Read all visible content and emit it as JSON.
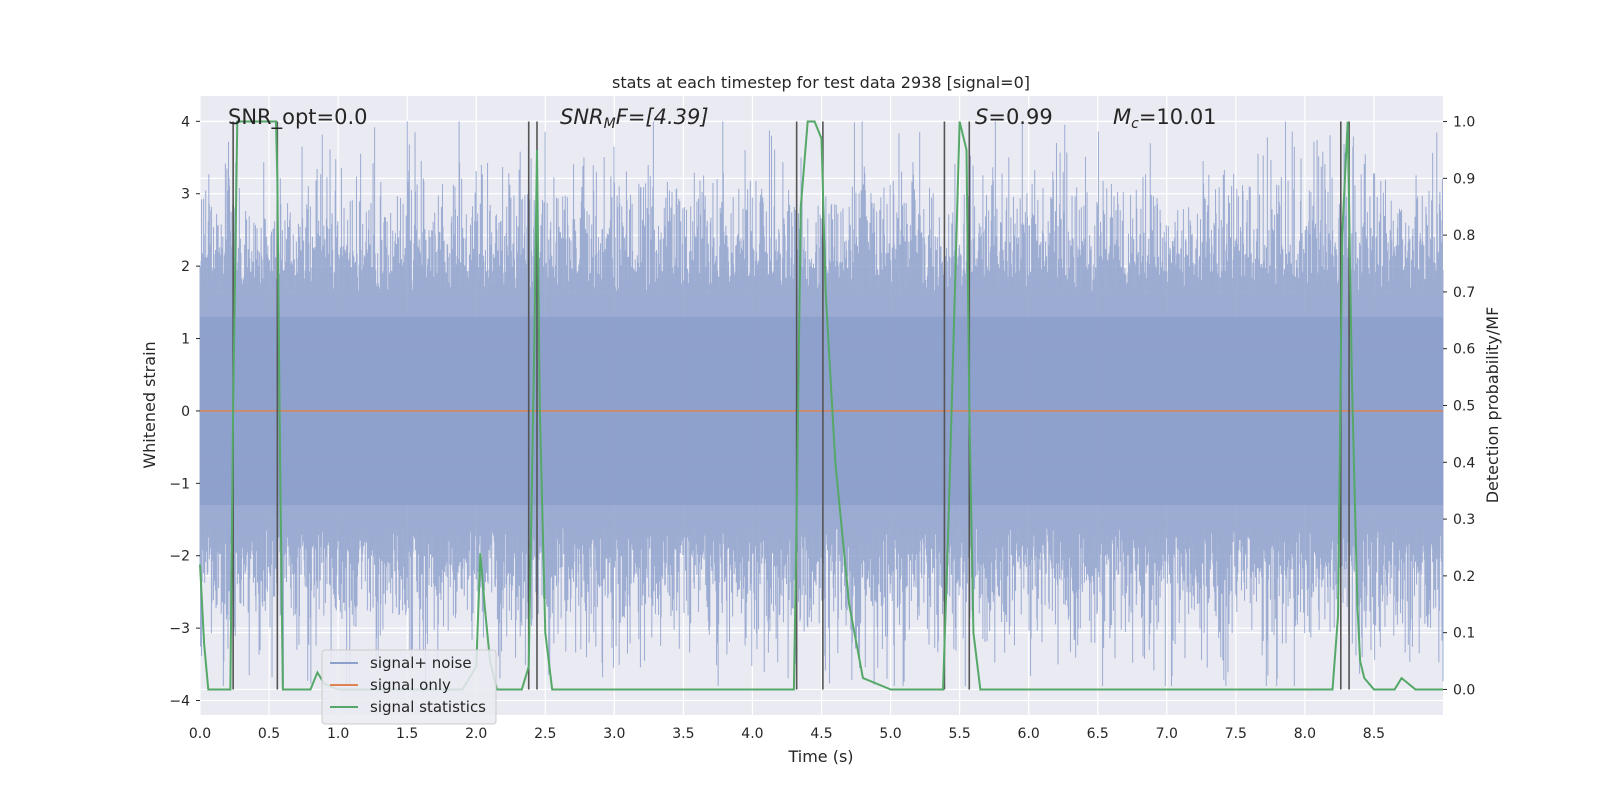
{
  "chart_data": {
    "type": "line",
    "title": "stats at each timestep for test data 2938 [signal=0]",
    "xlabel": "Time (s)",
    "ylabel": "Whitened strain",
    "ylabel_right": "Detection probability/MF",
    "xlim": [
      0.0,
      9.0
    ],
    "ylim": [
      -4.2,
      4.35
    ],
    "ylim_right": [
      -0.045,
      1.045
    ],
    "xticks": [
      "0.0",
      "0.5",
      "1.0",
      "1.5",
      "2.0",
      "2.5",
      "3.0",
      "3.5",
      "4.0",
      "4.5",
      "5.0",
      "5.5",
      "6.0",
      "6.5",
      "7.0",
      "7.5",
      "8.0",
      "8.5"
    ],
    "yticks": [
      "4",
      "3",
      "2",
      "1",
      "0",
      "−1",
      "−2",
      "−3",
      "−4"
    ],
    "yticks_right": [
      "1.0",
      "0.9",
      "0.8",
      "0.7",
      "0.6",
      "0.5",
      "0.4",
      "0.3",
      "0.2",
      "0.1",
      "0.0"
    ],
    "grid": true,
    "legend_position": "lower-left",
    "annotations": {
      "snr_opt": "SNR_opt=0.0",
      "snr_mf_prefix": "SNR",
      "snr_mf_sub": "M",
      "snr_mf_rest": "F=[4.39]",
      "s_var": "S",
      "s_rest": "=0.99",
      "mc_var": "M",
      "mc_sub": "c",
      "mc_rest": "=10.01"
    },
    "series": [
      {
        "name": "signal+ noise",
        "color": "#8da0cb",
        "style": "dense whitened noise, approx ±2 sigma with peaks to ±4",
        "peaks": [
          {
            "x": 1.5,
            "y": 4.0
          },
          {
            "x": 0.7,
            "y": -3.3
          },
          {
            "x": 2.8,
            "y": -3.4
          },
          {
            "x": 4.35,
            "y": 3.5
          },
          {
            "x": 7.8,
            "y": -3.7
          },
          {
            "x": 6.2,
            "y": 3.7
          }
        ]
      },
      {
        "name": "signal only",
        "color": "#dd8452",
        "x": [
          0.0,
          9.0
        ],
        "y": [
          0.0,
          0.0
        ]
      },
      {
        "name": "signal statistics",
        "color": "#55a868",
        "axis": "right",
        "x": [
          0.0,
          0.03,
          0.06,
          0.15,
          0.22,
          0.24,
          0.27,
          0.29,
          0.31,
          0.35,
          0.55,
          0.56,
          0.58,
          0.6,
          0.62,
          0.7,
          0.75,
          0.8,
          0.85,
          0.9,
          1.0,
          1.3,
          1.6,
          1.9,
          2.0,
          2.03,
          2.06,
          2.1,
          2.15,
          2.2,
          2.33,
          2.38,
          2.42,
          2.44,
          2.46,
          2.5,
          2.55,
          2.6,
          3.0,
          3.5,
          4.0,
          4.3,
          4.32,
          4.35,
          4.4,
          4.45,
          4.5,
          4.53,
          4.6,
          4.7,
          4.8,
          5.0,
          5.3,
          5.38,
          5.42,
          5.5,
          5.55,
          5.57,
          5.6,
          5.65,
          5.7,
          6.0,
          7.0,
          8.0,
          8.2,
          8.24,
          8.27,
          8.31,
          8.34,
          8.38,
          8.4,
          8.43,
          8.5,
          8.6,
          8.65,
          8.7,
          8.75,
          8.8,
          8.9,
          9.0
        ],
        "y": [
          0.22,
          0.08,
          0.0,
          0.0,
          0.0,
          0.5,
          1.0,
          1.0,
          1.0,
          1.0,
          1.0,
          0.9,
          0.4,
          0.0,
          0.0,
          0.0,
          0.0,
          0.0,
          0.03,
          0.01,
          0.0,
          0.0,
          0.0,
          0.0,
          0.04,
          0.24,
          0.15,
          0.05,
          0.0,
          0.0,
          0.0,
          0.04,
          0.6,
          0.95,
          0.5,
          0.1,
          0.0,
          0.0,
          0.0,
          0.0,
          0.0,
          0.0,
          0.3,
          0.85,
          1.0,
          1.0,
          0.97,
          0.7,
          0.4,
          0.15,
          0.02,
          0.0,
          0.0,
          0.0,
          0.3,
          1.0,
          0.95,
          0.5,
          0.1,
          0.0,
          0.0,
          0.0,
          0.0,
          0.0,
          0.0,
          0.13,
          0.8,
          1.0,
          0.55,
          0.15,
          0.05,
          0.02,
          0.0,
          0.0,
          0.0,
          0.02,
          0.01,
          0.0,
          0.0,
          0.0
        ]
      }
    ],
    "vertical_markers": [
      0.24,
      0.56,
      2.38,
      2.44,
      4.32,
      4.51,
      5.39,
      5.57,
      8.26,
      8.32
    ],
    "vertical_marker_color": "#555555"
  }
}
